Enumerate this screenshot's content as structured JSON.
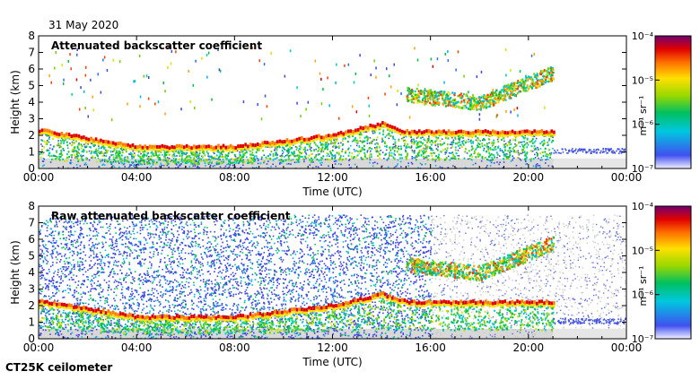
{
  "date": "31 May 2020",
  "footer": "CT25K ceilometer",
  "colorbar_unit": "m⁻¹ sr⁻¹",
  "chart_data": [
    {
      "type": "heatmap",
      "title": "Attenuated backscatter coefficient",
      "xlabel": "Time (UTC)",
      "ylabel": "Height (km)",
      "xlim_hours": [
        0,
        24
      ],
      "ylim": [
        0,
        8
      ],
      "x_tick_labels": [
        "00:00",
        "04:00",
        "08:00",
        "12:00",
        "16:00",
        "20:00",
        "00:00"
      ],
      "y_tick_labels": [
        "0",
        "1",
        "2",
        "3",
        "4",
        "5",
        "6",
        "7",
        "8"
      ],
      "colorbar": {
        "scale": "log",
        "range": [
          1e-07,
          0.0001
        ],
        "labels": [
          "10⁻⁷",
          "10⁻⁶",
          "10⁻⁵",
          "10⁻⁴"
        ]
      },
      "features": [
        {
          "name": "boundary layer top",
          "time_h": [
            0,
            4,
            8,
            12,
            14,
            15
          ],
          "height_km": [
            2.3,
            1.3,
            1.3,
            2.0,
            2.7,
            2.2
          ]
        },
        {
          "name": "elevated cloud layer",
          "time_h": [
            15,
            18,
            21
          ],
          "height_km": [
            4.5,
            4.0,
            5.8
          ]
        },
        {
          "name": "data gap",
          "time_h": [
            21,
            24
          ],
          "height_km": [
            0,
            8
          ]
        }
      ]
    },
    {
      "type": "heatmap",
      "title": "Raw attenuated backscatter coefficient",
      "xlabel": "Time (UTC)",
      "ylabel": "Height (km)",
      "xlim_hours": [
        0,
        24
      ],
      "ylim": [
        0,
        8
      ],
      "x_tick_labels": [
        "00:00",
        "04:00",
        "08:00",
        "12:00",
        "16:00",
        "20:00",
        "00:00"
      ],
      "y_tick_labels": [
        "0",
        "1",
        "2",
        "3",
        "4",
        "5",
        "6",
        "7",
        "8"
      ],
      "colorbar": {
        "scale": "log",
        "range": [
          1e-07,
          0.0001
        ],
        "labels": [
          "10⁻⁷",
          "10⁻⁶",
          "10⁻⁵",
          "10⁻⁴"
        ]
      },
      "features": [
        {
          "name": "boundary layer top",
          "time_h": [
            0,
            4,
            8,
            12,
            14,
            15
          ],
          "height_km": [
            2.3,
            1.3,
            1.3,
            2.0,
            2.7,
            2.2
          ]
        },
        {
          "name": "elevated cloud layer",
          "time_h": [
            15,
            18,
            21
          ],
          "height_km": [
            4.5,
            4.0,
            5.8
          ]
        },
        {
          "name": "noise-dominated background",
          "time_h": [
            0,
            16
          ],
          "height_km": [
            0,
            7.5
          ]
        }
      ]
    }
  ]
}
